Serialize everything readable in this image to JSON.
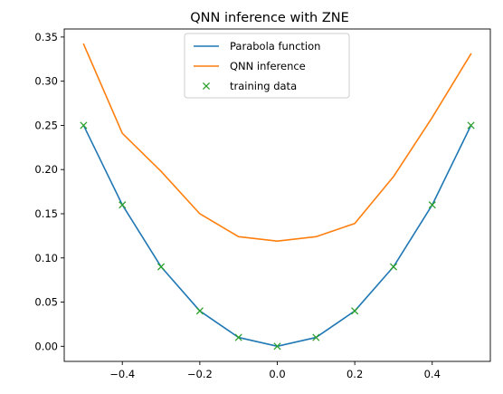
{
  "chart_data": {
    "type": "line",
    "title": "QNN inference with ZNE",
    "xlabel": "",
    "ylabel": "",
    "xlim": [
      -0.55,
      0.55
    ],
    "ylim": [
      -0.0171,
      0.3591
    ],
    "xticks": [
      -0.4,
      -0.2,
      0.0,
      0.2,
      0.4
    ],
    "xtick_labels": [
      "−0.4",
      "−0.2",
      "0.0",
      "0.2",
      "0.4"
    ],
    "yticks": [
      0.0,
      0.05,
      0.1,
      0.15,
      0.2,
      0.25,
      0.3,
      0.35
    ],
    "ytick_labels": [
      "0.00",
      "0.05",
      "0.10",
      "0.15",
      "0.20",
      "0.25",
      "0.30",
      "0.35"
    ],
    "grid": false,
    "legend_position": "top-center",
    "series": [
      {
        "name": "Parabola function",
        "style": "line",
        "color": "#1f77b4",
        "x": [
          -0.5,
          -0.4,
          -0.3,
          -0.2,
          -0.1,
          0.0,
          0.1,
          0.2,
          0.3,
          0.4,
          0.5
        ],
        "y": [
          0.25,
          0.16,
          0.09,
          0.04,
          0.01,
          0.0,
          0.01,
          0.04,
          0.09,
          0.16,
          0.25
        ]
      },
      {
        "name": "QNN inference",
        "style": "line",
        "color": "#ff7f0e",
        "x": [
          -0.5,
          -0.4,
          -0.3,
          -0.2,
          -0.1,
          0.0,
          0.1,
          0.2,
          0.3,
          0.4,
          0.5
        ],
        "y": [
          0.342,
          0.241,
          0.198,
          0.15,
          0.124,
          0.119,
          0.124,
          0.139,
          0.192,
          0.259,
          0.331
        ]
      },
      {
        "name": "training data",
        "style": "marker-x",
        "color": "#2ca02c",
        "x": [
          -0.5,
          -0.4,
          -0.3,
          -0.2,
          -0.1,
          0.0,
          0.1,
          0.2,
          0.3,
          0.4,
          0.5
        ],
        "y": [
          0.25,
          0.16,
          0.09,
          0.04,
          0.01,
          0.0,
          0.01,
          0.04,
          0.09,
          0.16,
          0.25
        ]
      }
    ]
  }
}
